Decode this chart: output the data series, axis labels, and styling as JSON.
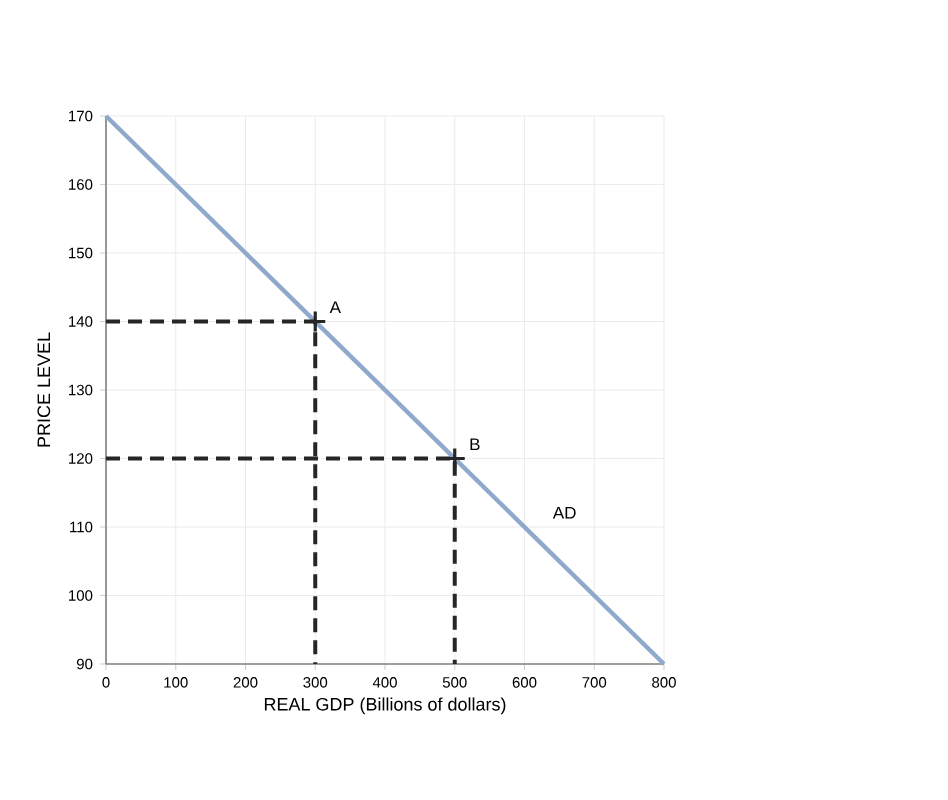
{
  "chart_data": {
    "type": "line",
    "xlabel": "REAL GDP (Billions of dollars)",
    "ylabel": "PRICE LEVEL",
    "xlim": [
      0,
      800
    ],
    "ylim": [
      90,
      170
    ],
    "xticks": [
      0,
      100,
      200,
      300,
      400,
      500,
      600,
      700,
      800
    ],
    "yticks": [
      90,
      100,
      110,
      120,
      130,
      140,
      150,
      160,
      170
    ],
    "grid": true,
    "series": [
      {
        "color": "#8fa9cc",
        "x": [
          0,
          800
        ],
        "values": [
          170,
          90
        ],
        "line_style": "solid"
      },
      {
        "color": "#262626",
        "x": [
          0,
          300,
          300
        ],
        "values": [
          140,
          140,
          90
        ],
        "line_style": "dashed"
      },
      {
        "color": "#262626",
        "x": [
          0,
          500,
          500
        ],
        "values": [
          120,
          120,
          90
        ],
        "line_style": "dashed"
      },
      {
        "type": "scatter",
        "color": "#262626",
        "x": [
          300,
          500
        ],
        "values": [
          140,
          120
        ],
        "marker": "cross"
      }
    ],
    "annotations": [
      {
        "text": "A",
        "x": 300,
        "y": 140
      },
      {
        "text": "B",
        "x": 500,
        "y": 120
      },
      {
        "text": "AD",
        "x": 620,
        "y": 110
      }
    ]
  }
}
